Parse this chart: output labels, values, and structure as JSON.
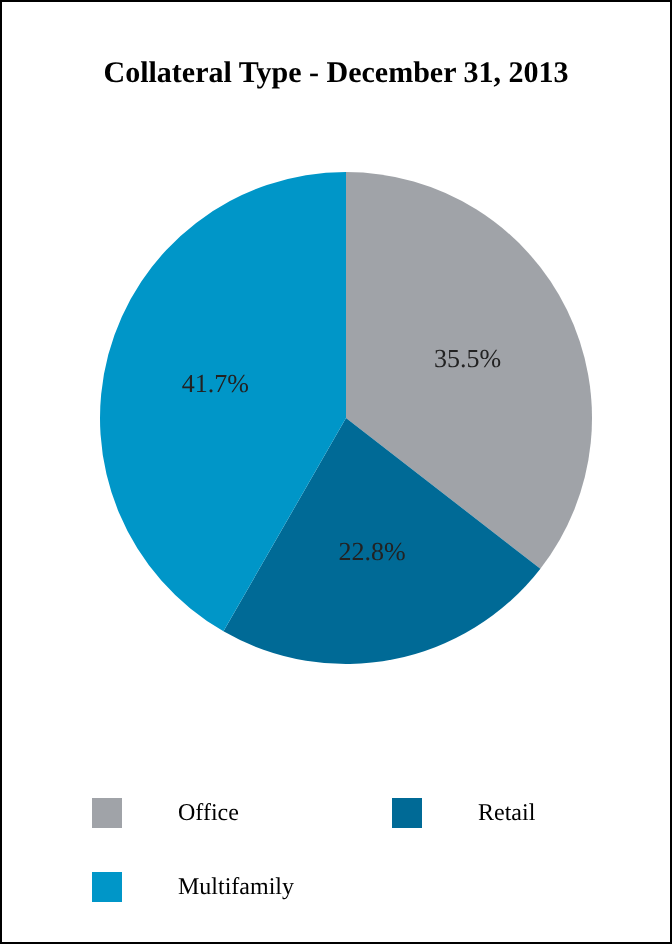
{
  "chart_data": {
    "type": "pie",
    "title": "Collateral Type - December 31, 2013",
    "categories": [
      "Office",
      "Retail",
      "Multifamily"
    ],
    "values": [
      35.5,
      22.8,
      41.7
    ],
    "colors": [
      "#a0a3a8",
      "#006a96",
      "#0096c8"
    ],
    "value_labels": [
      "35.5%",
      "22.8%",
      "41.7%"
    ],
    "legend": "bottom"
  }
}
